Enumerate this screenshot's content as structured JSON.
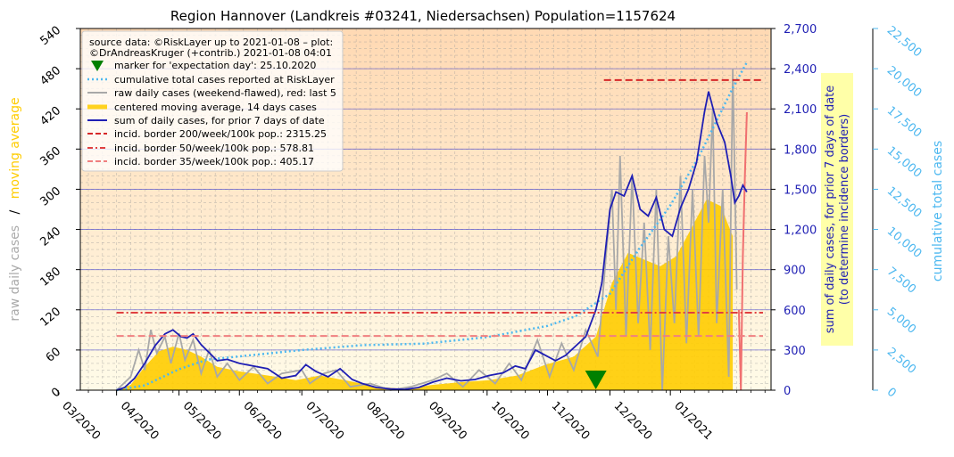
{
  "chart_data": {
    "type": "line",
    "title": "Region Hannover (Landkreis #03241, Niedersachsen) Population=1157624",
    "ylabel_left_parts": [
      "raw daily cases",
      "/",
      "moving average"
    ],
    "ylabel_right": [
      "sum of daily cases, for prior 7 days of date",
      "(to determine incidence borders)"
    ],
    "ylabel_right2": "cumulative total cases",
    "x_ticks": [
      "03/2020",
      "04/2020",
      "05/2020",
      "06/2020",
      "07/2020",
      "08/2020",
      "09/2020",
      "10/2020",
      "11/2020",
      "12/2020",
      "01/2021"
    ],
    "x_range": [
      "2020-02-12",
      "2021-01-20"
    ],
    "ylim_left": [
      0,
      540
    ],
    "ylim_right": [
      0,
      2700
    ],
    "ylim_right2": [
      0,
      22500
    ],
    "y_ticks_left": [
      "0",
      "60",
      "120",
      "180",
      "240",
      "300",
      "360",
      "420",
      "480",
      "540"
    ],
    "y_ticks_right": [
      "0",
      "300",
      "600",
      "900",
      "1,200",
      "1,500",
      "1,800",
      "2,100",
      "2,400",
      "2,700"
    ],
    "y_ticks_right2": [
      "0",
      "2,500",
      "5,000",
      "7,500",
      "10,000",
      "12,500",
      "15,000",
      "17,500",
      "20,000",
      "22,500"
    ],
    "legend": {
      "placement": "top-left",
      "source_lines": [
        "source data: ©RiskLayer up to 2021-01-08 – plot:",
        "©DrAndreasKruger (+contrib.) 2021-01-08 04:01"
      ],
      "entries": [
        {
          "label": "marker for 'expectation day': 25.10.2020",
          "kind": "marker",
          "color": "#008000"
        },
        {
          "label": "cumulative total cases reported at RiskLayer",
          "kind": "dotted",
          "color": "#4db8f0"
        },
        {
          "label": "raw daily cases (weekend-flawed), red: last 5",
          "kind": "solid",
          "color": "#a8a8a8"
        },
        {
          "label": "centered moving average, 14 days cases",
          "kind": "thick",
          "color": "#ffd21f"
        },
        {
          "label": "sum of daily cases, for prior 7 days of date",
          "kind": "solid",
          "color": "#1f1fb4"
        },
        {
          "label": "incid. border 200/week/100k pop.: 2315.25",
          "kind": "dashed",
          "color": "#d62728"
        },
        {
          "label": "incid. border 50/week/100k pop.: 578.81",
          "kind": "dashed",
          "color": "#e04040"
        },
        {
          "label": "incid. border 35/week/100k pop.: 405.17",
          "kind": "dashed",
          "color": "#f08080"
        }
      ]
    },
    "expectation_day": "2020-10-25",
    "incidence_borders": [
      {
        "value": 2315.25,
        "start": "2020-10-29",
        "end": "2021-01-16",
        "color": "#d62728"
      },
      {
        "value": 578.81,
        "start": "2020-03-01",
        "end": "2021-01-16",
        "color": "#e04040"
      },
      {
        "value": 405.17,
        "start": "2020-03-01",
        "end": "2021-01-16",
        "color": "#f08080"
      }
    ],
    "series": [
      {
        "name": "sum of daily cases, for prior 7 days of date",
        "axis": "right",
        "color": "#1f1fb4",
        "points": [
          [
            "2020-03-01",
            0
          ],
          [
            "2020-03-05",
            20
          ],
          [
            "2020-03-10",
            90
          ],
          [
            "2020-03-15",
            200
          ],
          [
            "2020-03-20",
            330
          ],
          [
            "2020-03-25",
            420
          ],
          [
            "2020-03-29",
            450
          ],
          [
            "2020-04-02",
            400
          ],
          [
            "2020-04-05",
            390
          ],
          [
            "2020-04-08",
            420
          ],
          [
            "2020-04-12",
            340
          ],
          [
            "2020-04-16",
            280
          ],
          [
            "2020-04-20",
            220
          ],
          [
            "2020-04-25",
            230
          ],
          [
            "2020-05-01",
            200
          ],
          [
            "2020-05-08",
            180
          ],
          [
            "2020-05-15",
            160
          ],
          [
            "2020-05-22",
            90
          ],
          [
            "2020-05-29",
            110
          ],
          [
            "2020-06-03",
            190
          ],
          [
            "2020-06-08",
            140
          ],
          [
            "2020-06-14",
            100
          ],
          [
            "2020-06-20",
            160
          ],
          [
            "2020-06-26",
            80
          ],
          [
            "2020-07-01",
            50
          ],
          [
            "2020-07-08",
            20
          ],
          [
            "2020-07-15",
            10
          ],
          [
            "2020-07-22",
            5
          ],
          [
            "2020-07-29",
            20
          ],
          [
            "2020-08-05",
            60
          ],
          [
            "2020-08-12",
            90
          ],
          [
            "2020-08-19",
            70
          ],
          [
            "2020-08-26",
            80
          ],
          [
            "2020-09-02",
            110
          ],
          [
            "2020-09-09",
            130
          ],
          [
            "2020-09-15",
            180
          ],
          [
            "2020-09-20",
            160
          ],
          [
            "2020-09-25",
            300
          ],
          [
            "2020-09-30",
            260
          ],
          [
            "2020-10-05",
            220
          ],
          [
            "2020-10-10",
            260
          ],
          [
            "2020-10-15",
            330
          ],
          [
            "2020-10-20",
            400
          ],
          [
            "2020-10-25",
            600
          ],
          [
            "2020-10-28",
            800
          ],
          [
            "2020-11-01",
            1350
          ],
          [
            "2020-11-04",
            1480
          ],
          [
            "2020-11-08",
            1450
          ],
          [
            "2020-11-12",
            1600
          ],
          [
            "2020-11-16",
            1350
          ],
          [
            "2020-11-20",
            1300
          ],
          [
            "2020-11-24",
            1440
          ],
          [
            "2020-11-28",
            1200
          ],
          [
            "2020-12-02",
            1150
          ],
          [
            "2020-12-06",
            1360
          ],
          [
            "2020-12-10",
            1500
          ],
          [
            "2020-12-14",
            1700
          ],
          [
            "2020-12-18",
            2080
          ],
          [
            "2020-12-20",
            2230
          ],
          [
            "2020-12-24",
            2000
          ],
          [
            "2020-12-28",
            1850
          ],
          [
            "2020-12-31",
            1600
          ],
          [
            "2021-01-02",
            1400
          ],
          [
            "2021-01-04",
            1450
          ],
          [
            "2021-01-06",
            1530
          ],
          [
            "2021-01-08",
            1480
          ]
        ]
      },
      {
        "name": "centered moving average, 14 days cases",
        "axis": "left",
        "color": "#ffd21f",
        "points": [
          [
            "2020-03-01",
            0
          ],
          [
            "2020-03-08",
            8
          ],
          [
            "2020-03-15",
            35
          ],
          [
            "2020-03-22",
            58
          ],
          [
            "2020-03-29",
            65
          ],
          [
            "2020-04-05",
            60
          ],
          [
            "2020-04-12",
            50
          ],
          [
            "2020-04-20",
            35
          ],
          [
            "2020-05-01",
            28
          ],
          [
            "2020-05-15",
            22
          ],
          [
            "2020-05-29",
            15
          ],
          [
            "2020-06-10",
            22
          ],
          [
            "2020-06-24",
            14
          ],
          [
            "2020-07-08",
            5
          ],
          [
            "2020-07-22",
            2
          ],
          [
            "2020-08-05",
            8
          ],
          [
            "2020-08-19",
            12
          ],
          [
            "2020-09-02",
            15
          ],
          [
            "2020-09-16",
            22
          ],
          [
            "2020-09-30",
            38
          ],
          [
            "2020-10-14",
            50
          ],
          [
            "2020-10-25",
            80
          ],
          [
            "2020-11-02",
            160
          ],
          [
            "2020-11-10",
            205
          ],
          [
            "2020-11-18",
            195
          ],
          [
            "2020-11-26",
            185
          ],
          [
            "2020-12-04",
            200
          ],
          [
            "2020-12-12",
            245
          ],
          [
            "2020-12-19",
            285
          ],
          [
            "2020-12-26",
            275
          ],
          [
            "2021-01-01",
            230
          ]
        ]
      },
      {
        "name": "raw daily cases (weekend-flawed), red: last 5",
        "axis": "left",
        "color": "#a8a8a8",
        "points": [
          [
            "2020-03-01",
            0
          ],
          [
            "2020-03-08",
            20
          ],
          [
            "2020-03-12",
            60
          ],
          [
            "2020-03-15",
            30
          ],
          [
            "2020-03-18",
            90
          ],
          [
            "2020-03-21",
            55
          ],
          [
            "2020-03-25",
            80
          ],
          [
            "2020-03-28",
            40
          ],
          [
            "2020-04-01",
            85
          ],
          [
            "2020-04-04",
            45
          ],
          [
            "2020-04-08",
            75
          ],
          [
            "2020-04-12",
            25
          ],
          [
            "2020-04-16",
            60
          ],
          [
            "2020-04-20",
            20
          ],
          [
            "2020-04-25",
            40
          ],
          [
            "2020-05-01",
            15
          ],
          [
            "2020-05-08",
            35
          ],
          [
            "2020-05-15",
            10
          ],
          [
            "2020-05-22",
            25
          ],
          [
            "2020-06-01",
            30
          ],
          [
            "2020-06-05",
            10
          ],
          [
            "2020-06-12",
            25
          ],
          [
            "2020-06-18",
            30
          ],
          [
            "2020-06-25",
            5
          ],
          [
            "2020-07-05",
            10
          ],
          [
            "2020-07-15",
            0
          ],
          [
            "2020-07-25",
            5
          ],
          [
            "2020-08-05",
            15
          ],
          [
            "2020-08-12",
            25
          ],
          [
            "2020-08-20",
            5
          ],
          [
            "2020-08-28",
            30
          ],
          [
            "2020-09-05",
            10
          ],
          [
            "2020-09-12",
            40
          ],
          [
            "2020-09-18",
            15
          ],
          [
            "2020-09-26",
            75
          ],
          [
            "2020-10-02",
            20
          ],
          [
            "2020-10-08",
            70
          ],
          [
            "2020-10-14",
            30
          ],
          [
            "2020-10-20",
            90
          ],
          [
            "2020-10-26",
            50
          ],
          [
            "2020-10-30",
            200
          ],
          [
            "2020-11-02",
            300
          ],
          [
            "2020-11-04",
            120
          ],
          [
            "2020-11-06",
            350
          ],
          [
            "2020-11-09",
            80
          ],
          [
            "2020-11-12",
            320
          ],
          [
            "2020-11-15",
            100
          ],
          [
            "2020-11-18",
            250
          ],
          [
            "2020-11-21",
            60
          ],
          [
            "2020-11-24",
            300
          ],
          [
            "2020-11-27",
            0
          ],
          [
            "2020-11-30",
            230
          ],
          [
            "2020-12-03",
            100
          ],
          [
            "2020-12-06",
            320
          ],
          [
            "2020-12-09",
            70
          ],
          [
            "2020-12-12",
            300
          ],
          [
            "2020-12-15",
            80
          ],
          [
            "2020-12-18",
            350
          ],
          [
            "2020-12-20",
            250
          ],
          [
            "2020-12-22",
            420
          ],
          [
            "2020-12-24",
            100
          ],
          [
            "2020-12-27",
            300
          ],
          [
            "2020-12-30",
            20
          ],
          [
            "2021-01-01",
            480
          ],
          [
            "2021-01-03",
            150
          ]
        ]
      },
      {
        "name": "raw daily cases, last 5",
        "axis": "left",
        "color": "#f07070",
        "points": [
          [
            "2021-01-04",
            120
          ],
          [
            "2021-01-05",
            0
          ],
          [
            "2021-01-06",
            200
          ],
          [
            "2021-01-07",
            320
          ],
          [
            "2021-01-08",
            415
          ]
        ]
      },
      {
        "name": "cumulative total cases reported at RiskLayer",
        "axis": "right2",
        "color": "#4db8f0",
        "points": [
          [
            "2020-03-01",
            0
          ],
          [
            "2020-03-15",
            300
          ],
          [
            "2020-04-01",
            1300
          ],
          [
            "2020-04-15",
            1900
          ],
          [
            "2020-05-01",
            2100
          ],
          [
            "2020-06-01",
            2500
          ],
          [
            "2020-07-01",
            2800
          ],
          [
            "2020-08-01",
            2900
          ],
          [
            "2020-09-01",
            3300
          ],
          [
            "2020-10-01",
            4000
          ],
          [
            "2020-10-15",
            4600
          ],
          [
            "2020-11-01",
            6000
          ],
          [
            "2020-11-15",
            8700
          ],
          [
            "2020-12-01",
            11500
          ],
          [
            "2020-12-15",
            14500
          ],
          [
            "2021-01-01",
            18800
          ],
          [
            "2021-01-08",
            20400
          ]
        ]
      }
    ]
  }
}
